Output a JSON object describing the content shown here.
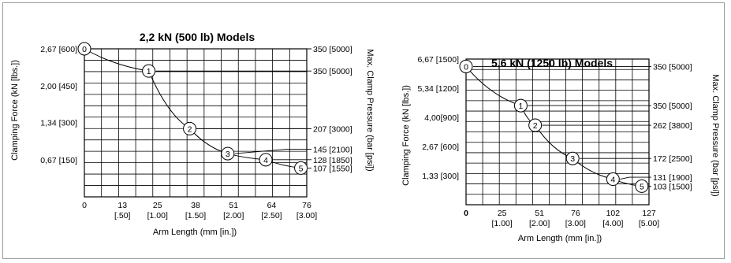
{
  "chart_data": [
    {
      "type": "line",
      "title": "2,2 kN (500 lb) Models",
      "xlabel": "Arm Length (mm [in.])",
      "ylabel": "Clamping Force (kN [lbs.])",
      "y2label": "Max. Clamp Pressure (bar [psi])",
      "xlim": [
        0,
        76
      ],
      "ylim": [
        0,
        2.67
      ],
      "x_ticks": [
        {
          "value": 0,
          "label": "0",
          "sub": ""
        },
        {
          "value": 13,
          "label": "13",
          "sub": "[.50]"
        },
        {
          "value": 25,
          "label": "25",
          "sub": "[1.00]"
        },
        {
          "value": 38,
          "label": "38",
          "sub": "[1.50]"
        },
        {
          "value": 51,
          "label": "51",
          "sub": "[2.00]"
        },
        {
          "value": 64,
          "label": "64",
          "sub": "[2.50]"
        },
        {
          "value": 76,
          "label": "76",
          "sub": "[3.00]"
        }
      ],
      "y_ticks": [
        {
          "value": 0.67,
          "label": "0,67 [150]"
        },
        {
          "value": 1.34,
          "label": "1,34 [300]"
        },
        {
          "value": 2.0,
          "label": "2,00 [450]"
        },
        {
          "value": 2.67,
          "label": "2,67 [600]"
        }
      ],
      "series": [
        {
          "points": [
            {
              "label": "0",
              "x": 0,
              "y": 2.67,
              "pressure": "350 [5000]",
              "pressure_y": 2.67
            },
            {
              "label": "1",
              "x": 22,
              "y": 2.27,
              "pressure": "350 [5000]",
              "pressure_y": 2.27
            },
            {
              "label": "2",
              "x": 36,
              "y": 1.23,
              "pressure": "207 [3000]",
              "pressure_y": 1.23
            },
            {
              "label": "3",
              "x": 49,
              "y": 0.78,
              "pressure": "145 [2100]",
              "pressure_y": 0.86
            },
            {
              "label": "4",
              "x": 62,
              "y": 0.67,
              "pressure": "128 [1850]",
              "pressure_y": 0.67
            },
            {
              "label": "5",
              "x": 74,
              "y": 0.52,
              "pressure": "107 [1550]",
              "pressure_y": 0.52
            }
          ]
        }
      ]
    },
    {
      "type": "line",
      "title": "5,6 kN (1250 lb) Models",
      "xlabel": "Arm Length (mm [in.])",
      "ylabel": "Clamping Force (kN [lbs.])",
      "y2label": "Max. Clamp Pressure (bar [psi])",
      "xlim": [
        0,
        127
      ],
      "ylim": [
        0,
        6.67
      ],
      "x_ticks": [
        {
          "value": 0,
          "label": "0",
          "sub": ""
        },
        {
          "value": 25,
          "label": "25",
          "sub": "[1.00]"
        },
        {
          "value": 51,
          "label": "51",
          "sub": "[2.00]"
        },
        {
          "value": 76,
          "label": "76",
          "sub": "[3.00]"
        },
        {
          "value": 102,
          "label": "102",
          "sub": "[4.00]"
        },
        {
          "value": 127,
          "label": "127",
          "sub": "[5.00]"
        }
      ],
      "y_ticks": [
        {
          "value": 1.33,
          "label": "1,33 [300]"
        },
        {
          "value": 2.67,
          "label": "2,67 [600]"
        },
        {
          "value": 4.0,
          "label": "4,00[900]"
        },
        {
          "value": 5.34,
          "label": "5,34 [1200]"
        },
        {
          "value": 6.67,
          "label": "6,67 [1500]"
        }
      ],
      "series": [
        {
          "points": [
            {
              "label": "0",
              "x": 0,
              "y": 6.33,
              "pressure": "350 [5000]",
              "pressure_y": 6.33
            },
            {
              "label": "1",
              "x": 38,
              "y": 4.54,
              "pressure": "350 [5000]",
              "pressure_y": 4.54
            },
            {
              "label": "2",
              "x": 48,
              "y": 3.64,
              "pressure": "262 [3800]",
              "pressure_y": 3.64
            },
            {
              "label": "3",
              "x": 74,
              "y": 2.12,
              "pressure": "172 [2500]",
              "pressure_y": 2.12
            },
            {
              "label": "4",
              "x": 102,
              "y": 1.17,
              "pressure": "131 [1900]",
              "pressure_y": 1.26
            },
            {
              "label": "5",
              "x": 122,
              "y": 0.85,
              "pressure": "103 [1500]",
              "pressure_y": 0.85
            }
          ]
        }
      ]
    }
  ]
}
